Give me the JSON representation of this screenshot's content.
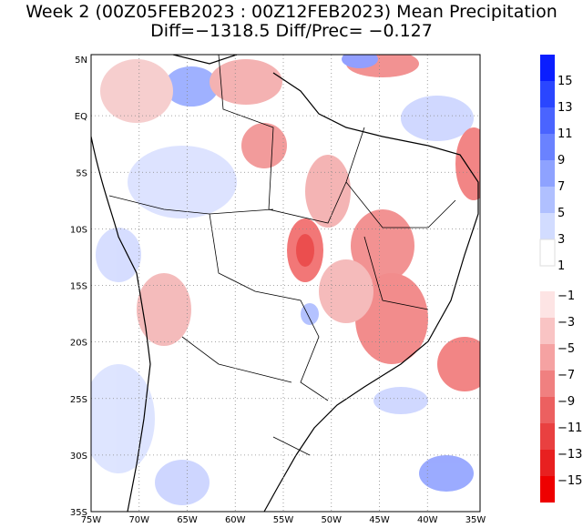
{
  "title": "Week 2 (00Z05FEB2023 : 00Z12FEB2023) Mean Precipitation",
  "subtitle": "Diff=−1318.5   Diff/Prec= −0.127",
  "lon_labels": [
    "75W",
    "70W",
    "65W",
    "60W",
    "55W",
    "50W",
    "45W",
    "40W",
    "35W"
  ],
  "lat_labels": [
    "5N",
    "EQ",
    "5S",
    "10S",
    "15S",
    "20S",
    "25S",
    "30S",
    "35S"
  ],
  "colorbar_labels": [
    "15",
    "13",
    "11",
    "9",
    "7",
    "5",
    "3",
    "1",
    "−1",
    "−3",
    "−5",
    "−7",
    "−9",
    "−11",
    "−13",
    "−15"
  ]
}
